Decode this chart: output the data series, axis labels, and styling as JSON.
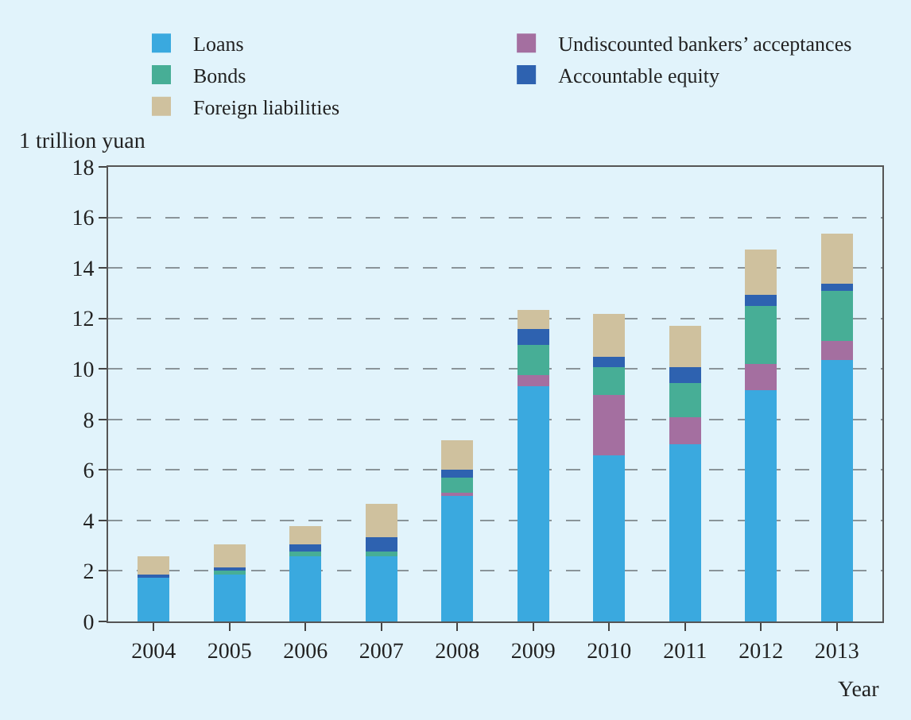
{
  "chart_data": {
    "type": "bar",
    "stacked": true,
    "ylabel": "1 trillion yuan",
    "xlabel": "Year",
    "categories": [
      "2004",
      "2005",
      "2006",
      "2007",
      "2008",
      "2009",
      "2010",
      "2011",
      "2012",
      "2013"
    ],
    "series": [
      {
        "name": "Loans",
        "color": "#3aa9df",
        "values": [
          1.72,
          1.85,
          2.57,
          2.57,
          4.96,
          9.3,
          6.58,
          7.03,
          9.17,
          10.36
        ]
      },
      {
        "name": "Undiscounted bankers’ acceptances",
        "color": "#a46fa0",
        "values": [
          0,
          0,
          0,
          0,
          0.13,
          0.44,
          2.4,
          1.06,
          1.04,
          0.76
        ]
      },
      {
        "name": "Bonds",
        "color": "#47ae96",
        "values": [
          0,
          0.15,
          0.19,
          0.19,
          0.61,
          1.22,
          1.1,
          1.36,
          2.27,
          1.98
        ]
      },
      {
        "name": "Accountable equity",
        "color": "#2e62b0",
        "values": [
          0.13,
          0.15,
          0.28,
          0.57,
          0.3,
          0.61,
          0.41,
          0.61,
          0.45,
          0.28
        ]
      },
      {
        "name": "Foreign liabilities",
        "color": "#cfc19e",
        "values": [
          0.74,
          0.89,
          0.74,
          1.34,
          1.19,
          0.76,
          1.68,
          1.66,
          1.81,
          1.97
        ]
      }
    ],
    "ylim": [
      0,
      18
    ],
    "yticks": [
      0,
      2,
      4,
      6,
      8,
      10,
      12,
      14,
      16,
      18
    ],
    "grid": "y",
    "legend": "top"
  }
}
